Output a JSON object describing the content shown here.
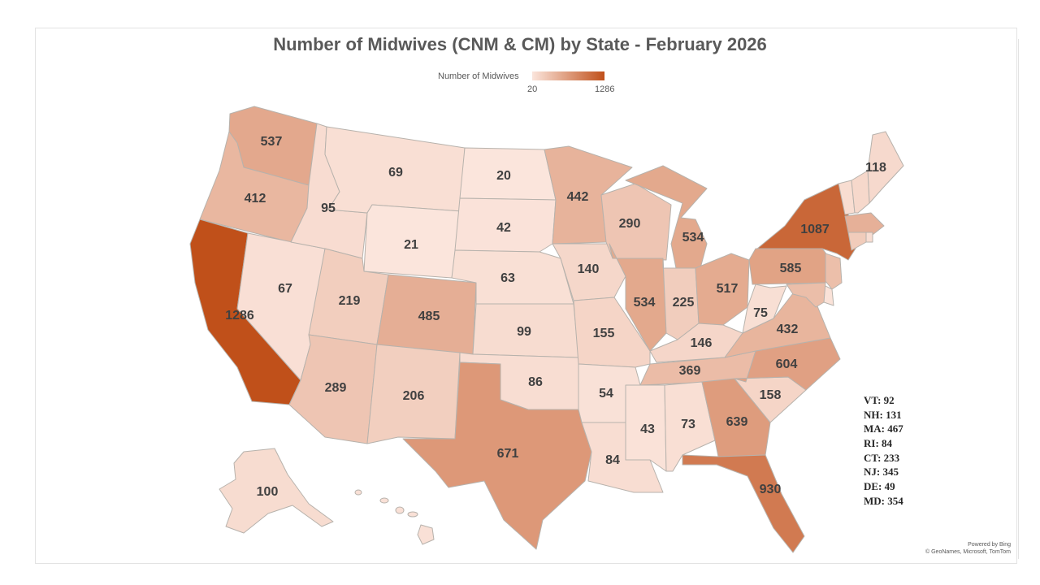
{
  "title": "Number of Midwives (CNM & CM) by State - February 2026",
  "legend": {
    "label": "Number of Midwives",
    "min": "20",
    "max": "1286",
    "color_min": "#fbe5dc",
    "color_max": "#c0501a"
  },
  "state_values": {
    "WA": "537",
    "OR": "412",
    "CA": "1286",
    "NV": "67",
    "ID": "95",
    "MT": "69",
    "WY": "21",
    "UT": "219",
    "AZ": "289",
    "CO": "485",
    "NM": "206",
    "ND": "20",
    "SD": "42",
    "NE": "63",
    "KS": "99",
    "OK": "86",
    "TX": "671",
    "MN": "442",
    "IA": "140",
    "MO": "155",
    "AR": "54",
    "LA": "84",
    "WI": "290",
    "IL": "534",
    "MI": "534",
    "IN": "225",
    "OH": "517",
    "KY": "146",
    "TN": "369",
    "MS": "43",
    "AL": "73",
    "GA": "639",
    "FL": "930",
    "SC": "158",
    "NC": "604",
    "VA": "432",
    "WV": "75",
    "PA": "585",
    "NY": "1087",
    "ME": "118",
    "AK": "100",
    "VT": "92",
    "NH": "131",
    "MA": "467",
    "RI": "84",
    "CT": "233",
    "NJ": "345",
    "DE": "49",
    "MD": "354",
    "HI": ""
  },
  "small_state_notes": [
    "VT: 92",
    "NH: 131",
    "MA: 467",
    "RI: 84",
    "CT: 233",
    "NJ: 345",
    "DE: 49",
    "MD: 354"
  ],
  "attribution": {
    "line1": "Powered by Bing",
    "line2": "© GeoNames, Microsoft, TomTom"
  }
}
